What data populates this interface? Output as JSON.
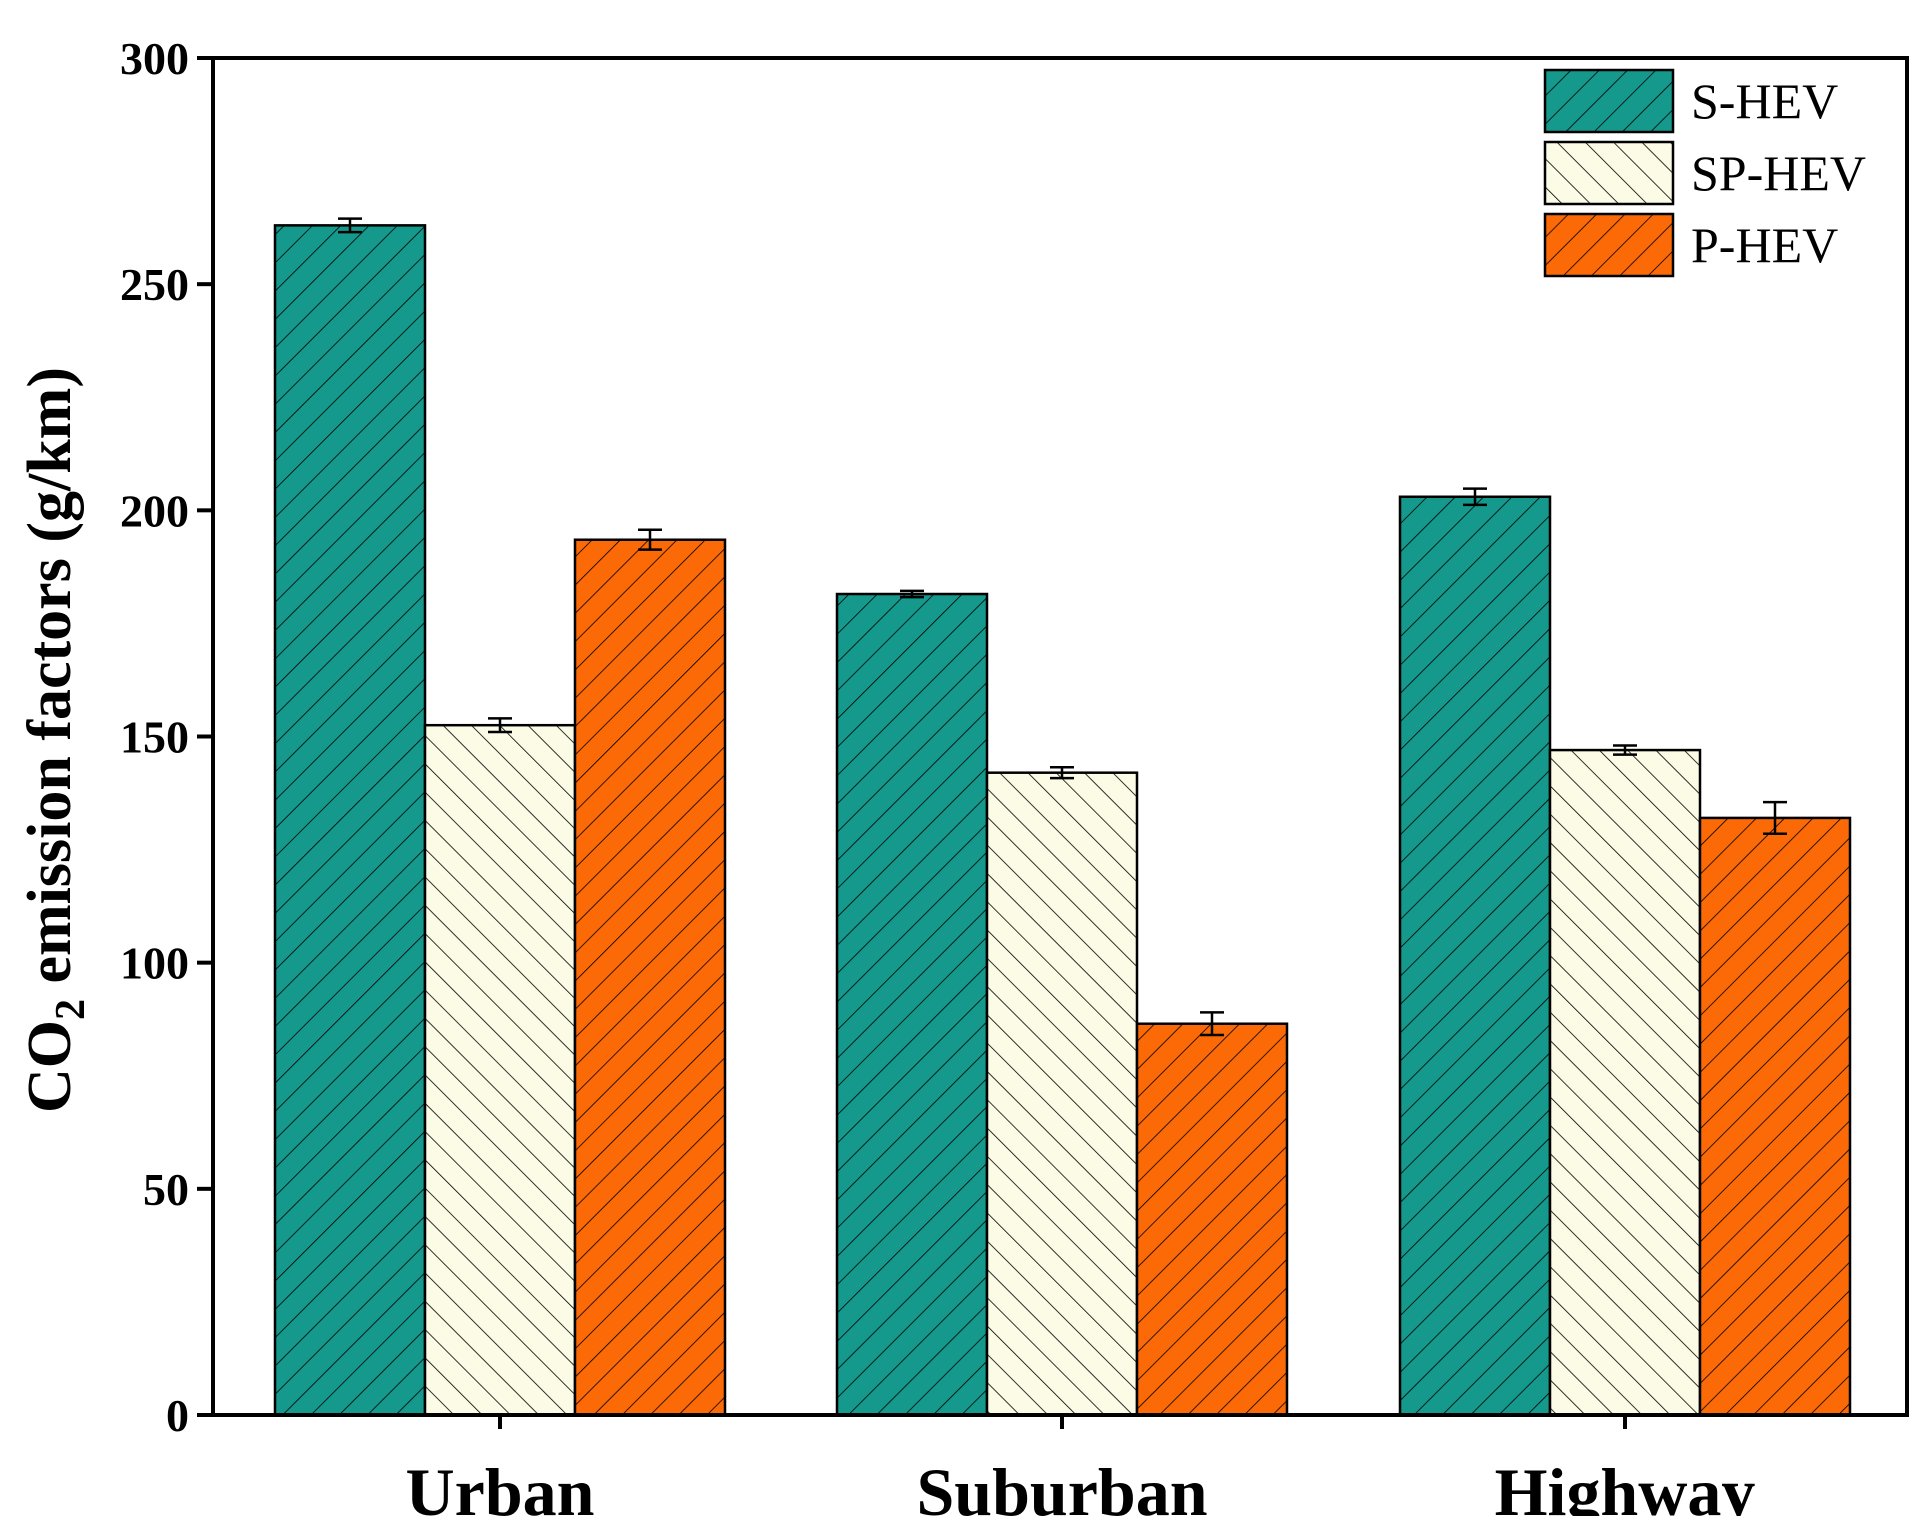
{
  "chart_data": {
    "type": "bar",
    "title": "",
    "xlabel": "",
    "ylabel": {
      "prefix": "CO",
      "subscript": "2",
      "suffix": " emission factors (g/km)"
    },
    "ylim": [
      0,
      300
    ],
    "yticks": [
      "0",
      "50",
      "100",
      "150",
      "200",
      "250",
      "300"
    ],
    "categories": [
      "Urban",
      "Suburban",
      "Highway"
    ],
    "legend_position": "top-right",
    "series": [
      {
        "name": "S-HEV",
        "color": "#14998c",
        "hatch": "forward",
        "values": [
          263,
          181.5,
          203
        ],
        "errors": [
          1.5,
          0.7,
          1.8
        ]
      },
      {
        "name": "SP-HEV",
        "color": "#fbfbe6",
        "hatch": "back",
        "values": [
          152.5,
          142,
          147
        ],
        "errors": [
          1.5,
          1.2,
          1.0
        ]
      },
      {
        "name": "P-HEV",
        "color": "#fb6a06",
        "hatch": "forward",
        "values": [
          193.5,
          86.5,
          132
        ],
        "errors": [
          2.2,
          2.5,
          3.5
        ]
      }
    ]
  }
}
